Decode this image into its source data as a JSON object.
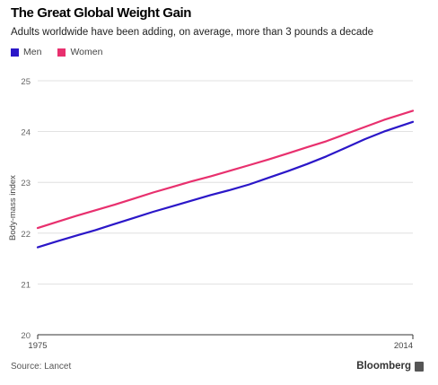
{
  "header": {
    "title": "The Great Global Weight Gain",
    "subtitle": "Adults worldwide have been adding, on average, more than 3 pounds a decade"
  },
  "footer": {
    "source": "Source: Lancet",
    "brand": "Bloomberg",
    "brand_icon": "bloomberg-logo-icon"
  },
  "chart_data": {
    "type": "line",
    "title": "The Great Global Weight Gain",
    "subtitle": "Adults worldwide have been adding, on average, more than 3 pounds a decade",
    "xlabel": "",
    "ylabel": "Body-mass index",
    "xlim": [
      1975,
      2014
    ],
    "ylim": [
      20,
      25
    ],
    "x_ticks": [
      "1975",
      "2014"
    ],
    "y_ticks": [
      20,
      21,
      22,
      23,
      24,
      25
    ],
    "grid": true,
    "legend_position": "top-left",
    "x": [
      1975,
      1977,
      1979,
      1981,
      1983,
      1985,
      1987,
      1989,
      1991,
      1993,
      1995,
      1997,
      1999,
      2001,
      2003,
      2005,
      2007,
      2009,
      2011,
      2014
    ],
    "series": [
      {
        "name": "Men",
        "color": "#2b17c8",
        "values": [
          21.72,
          21.84,
          21.95,
          22.06,
          22.18,
          22.3,
          22.42,
          22.53,
          22.64,
          22.75,
          22.85,
          22.96,
          23.09,
          23.22,
          23.36,
          23.51,
          23.68,
          23.85,
          24.0,
          24.19
        ]
      },
      {
        "name": "Women",
        "color": "#e8306e",
        "values": [
          22.1,
          22.22,
          22.34,
          22.45,
          22.56,
          22.68,
          22.8,
          22.91,
          23.02,
          23.12,
          23.23,
          23.34,
          23.45,
          23.57,
          23.69,
          23.81,
          23.95,
          24.09,
          24.23,
          24.41
        ]
      }
    ]
  }
}
